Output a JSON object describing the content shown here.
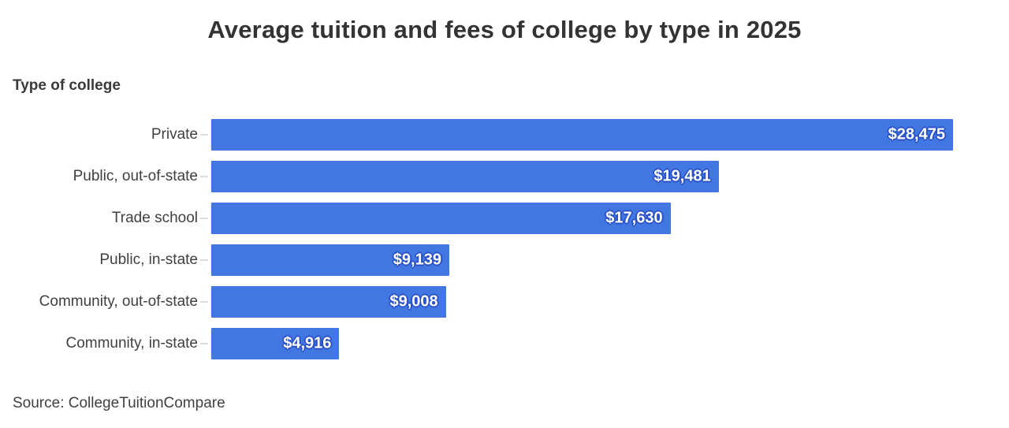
{
  "chart_data": {
    "type": "bar",
    "orientation": "horizontal",
    "title": "Average tuition and fees of college by type in 2025",
    "axis_label": "Type of college",
    "categories": [
      "Private",
      "Public, out-of-state",
      "Trade school",
      "Public, in-state",
      "Community, out-of-state",
      "Community, in-state"
    ],
    "values": [
      28475,
      19481,
      17630,
      9139,
      9008,
      4916
    ],
    "value_labels": [
      "$28,475",
      "$19,481",
      "$17,630",
      "$9,139",
      "$9,008",
      "$4,916"
    ],
    "xlim": [
      0,
      30626
    ],
    "grid": "off",
    "legend": "none",
    "bar_color": "#4276e0",
    "value_text_color": "#ffffff",
    "value_outline_color": "#2a52c8"
  },
  "source": {
    "text": "Source: CollegeTuitionCompare"
  }
}
